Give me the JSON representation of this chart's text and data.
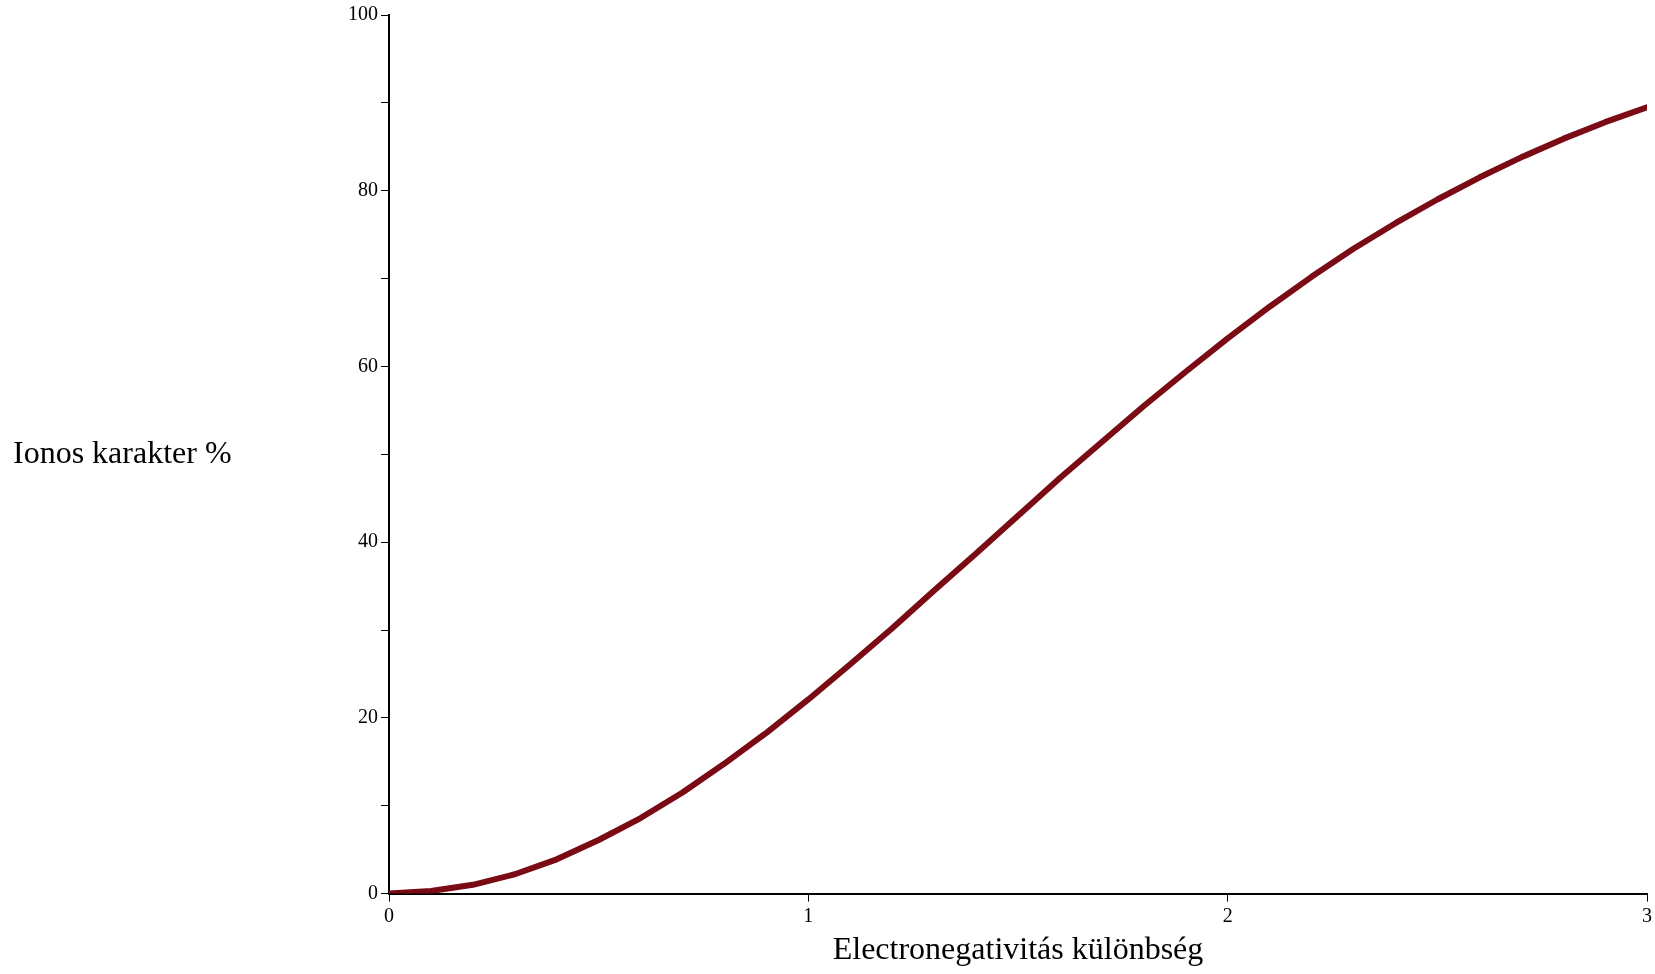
{
  "chart_data": {
    "type": "line",
    "xlabel": "Electronegativitás különbség",
    "ylabel": "Ionos karakter %",
    "x": [
      0,
      0.1,
      0.2,
      0.3,
      0.4,
      0.5,
      0.6,
      0.7,
      0.8,
      0.9,
      1,
      1.1,
      1.2,
      1.3,
      1.4,
      1.5,
      1.6,
      1.7,
      1.8,
      1.9,
      2,
      2.1,
      2.2,
      2.3,
      2.4,
      2.5,
      2.6,
      2.7,
      2.8,
      2.9,
      3
    ],
    "series": [
      {
        "color": "#7a0a14",
        "values": [
          0,
          0.3,
          1,
          2.2,
          3.9,
          6.1,
          8.6,
          11.5,
          14.8,
          18.3,
          22.1,
          26.1,
          30.2,
          34.5,
          38.7,
          43,
          47.3,
          51.4,
          55.5,
          59.4,
          63.2,
          66.8,
          70.2,
          73.4,
          76.3,
          79,
          81.5,
          83.8,
          85.9,
          87.8,
          89.5
        ]
      }
    ],
    "xlim": [
      0,
      3
    ],
    "xticks": [
      0,
      1,
      2,
      3
    ],
    "ylim": [
      0,
      100
    ],
    "yticks": [
      0,
      {
        "value": 10,
        "label": null
      },
      20,
      {
        "value": 30,
        "label": null
      },
      40,
      {
        "value": 50,
        "label": null
      },
      60,
      {
        "value": 70,
        "label": null
      },
      80,
      {
        "value": 90,
        "label": null
      },
      100
    ],
    "grid": false,
    "legend": false,
    "marker": "none",
    "line_style": "solid"
  }
}
